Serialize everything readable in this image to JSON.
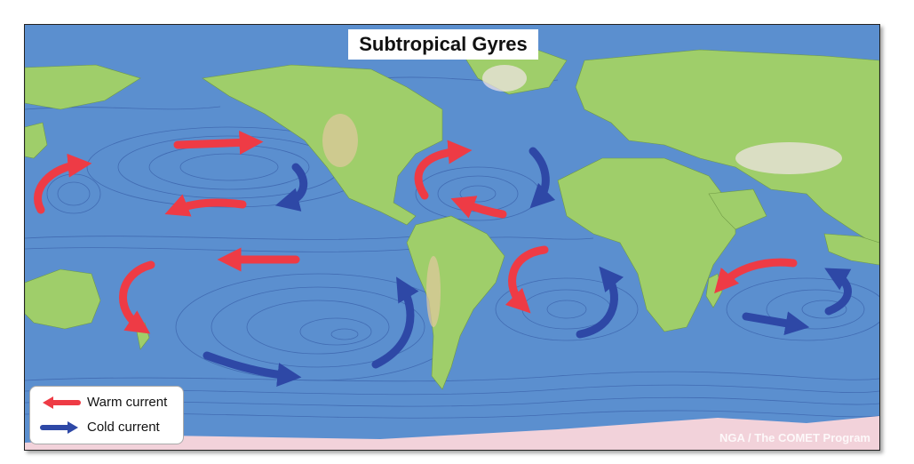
{
  "title": "Subtropical Gyres",
  "legend": {
    "warm": {
      "label": "Warm current",
      "color": "#ee3b45"
    },
    "cold": {
      "label": "Cold current",
      "color": "#2e48a6"
    }
  },
  "credit": "NGA / The COMET Program",
  "colors": {
    "ocean": "#5b8fcf",
    "land": "#9fce6a",
    "highland": "#e2c9a0",
    "ice": "#f2d2da",
    "streamline": "#2d4f9c"
  }
}
